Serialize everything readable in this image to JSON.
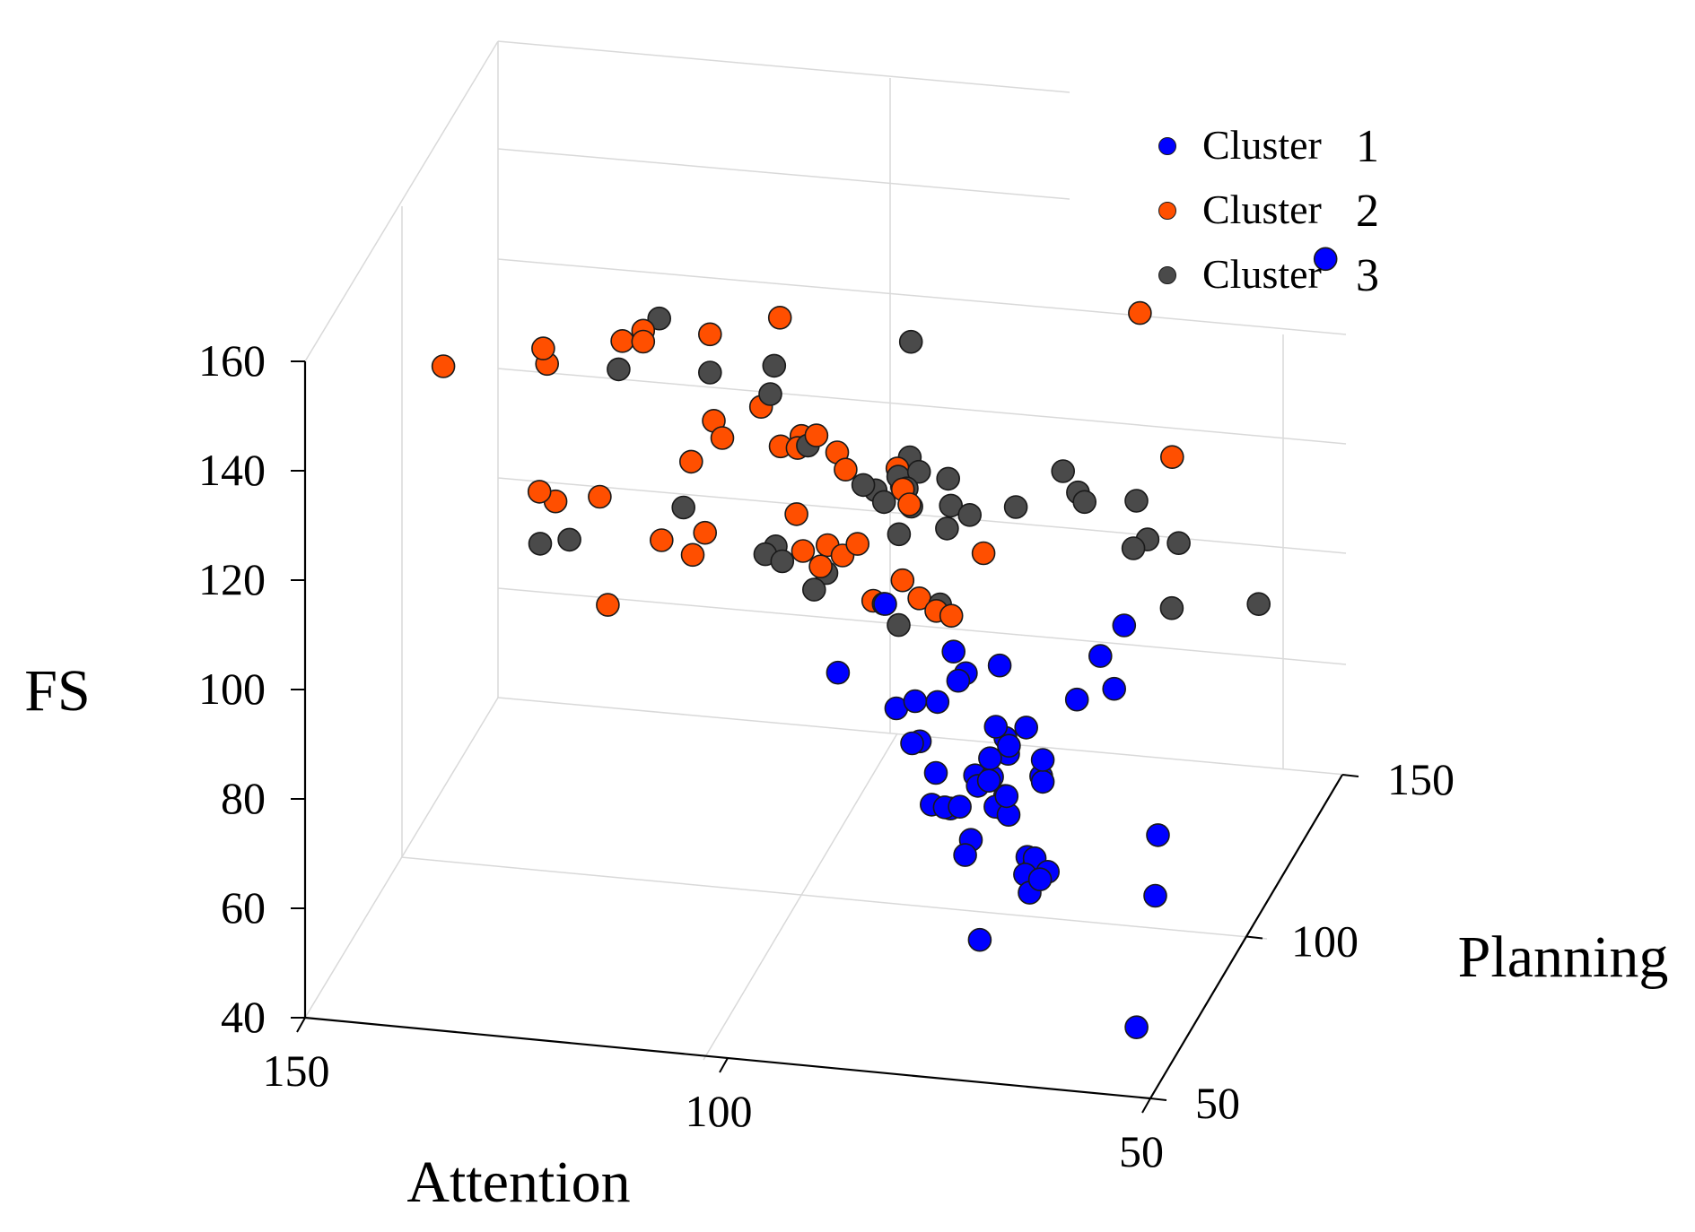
{
  "chart_data": {
    "type": "scatter3d",
    "xlabel": "Attention",
    "ylabel": "Planning",
    "zlabel": "FS",
    "xlim": [
      50,
      150
    ],
    "ylim": [
      50,
      150
    ],
    "zlim": [
      40,
      160
    ],
    "xticks": [
      "150",
      "100",
      "50"
    ],
    "yticks": [
      "50",
      "100",
      "150"
    ],
    "zticks": [
      "160",
      "140",
      "120",
      "100",
      "80",
      "60",
      "40"
    ],
    "grid": true,
    "legend_position": "top-right",
    "series": [
      {
        "name": "Cluster",
        "number": "1",
        "color": "#0000ff",
        "points": [
          [
            52,
            150,
            134
          ],
          [
            56,
            79,
            59
          ],
          [
            53,
            56,
            49
          ],
          [
            55,
            76,
            72
          ],
          [
            94,
            81,
            93
          ],
          [
            88,
            85,
            85
          ],
          [
            86,
            86,
            86
          ],
          [
            85,
            84,
            80
          ],
          [
            85,
            80,
            82
          ],
          [
            84,
            88,
            72
          ],
          [
            80,
            82,
            93
          ],
          [
            82,
            80,
            90
          ],
          [
            74,
            91,
            80
          ],
          [
            76,
            89,
            79
          ],
          [
            75,
            86,
            78
          ],
          [
            76,
            84,
            84
          ],
          [
            78,
            82,
            76
          ],
          [
            72,
            90,
            72
          ],
          [
            70,
            82,
            76
          ],
          [
            68,
            91,
            86
          ],
          [
            78,
            74,
            75
          ],
          [
            64,
            98,
            96
          ],
          [
            65,
            90,
            95
          ],
          [
            62,
            84,
            93
          ],
          [
            74,
            80,
            74
          ],
          [
            74,
            78,
            73
          ],
          [
            72,
            72,
            79
          ],
          [
            74,
            75,
            75
          ],
          [
            72,
            73,
            75
          ],
          [
            80,
            75,
            74
          ],
          [
            76,
            68,
            70
          ],
          [
            70,
            74,
            67
          ],
          [
            69,
            73,
            66
          ],
          [
            80,
            78,
            72
          ],
          [
            76,
            71,
            71
          ],
          [
            68,
            69,
            70
          ],
          [
            66,
            67,
            69
          ],
          [
            67,
            62,
            68
          ],
          [
            66,
            63,
            70
          ],
          [
            68,
            64,
            70
          ],
          [
            80,
            86,
            92
          ],
          [
            76,
            86,
            94
          ],
          [
            82,
            77,
            73
          ],
          [
            75,
            76,
            79
          ],
          [
            77,
            79,
            76
          ],
          [
            76,
            82,
            76
          ],
          [
            76,
            81,
            80
          ],
          [
            74,
            82,
            82
          ],
          [
            70,
            82,
            80
          ],
          [
            81,
            84,
            97
          ],
          [
            72,
            58,
            61
          ],
          [
            90,
            88,
            102
          ]
        ]
      },
      {
        "name": "Cluster",
        "number": "2",
        "color": "#ff4f00",
        "points": [
          [
            140,
            78,
            144
          ],
          [
            130,
            86,
            144
          ],
          [
            130,
            88,
            140
          ],
          [
            122,
            92,
            143
          ],
          [
            120,
            94,
            144
          ],
          [
            120,
            94,
            142
          ],
          [
            113,
            98,
            142
          ],
          [
            107,
            108,
            140
          ],
          [
            130,
            84,
            119
          ],
          [
            129,
            88,
            115
          ],
          [
            109,
            107,
            124
          ],
          [
            113,
            100,
            125
          ],
          [
            112,
            100,
            122
          ],
          [
            124,
            89,
            116
          ],
          [
            115,
            97,
            119
          ],
          [
            104,
            106,
            120
          ],
          [
            104,
            104,
            119
          ],
          [
            102,
            105,
            121
          ],
          [
            100,
            107,
            117
          ],
          [
            99,
            107,
            114
          ],
          [
            94,
            112,
            112
          ],
          [
            93,
            110,
            110
          ],
          [
            116,
            86,
            111
          ],
          [
            113,
            89,
            107
          ],
          [
            112,
            91,
            110
          ],
          [
            103,
            99,
            110
          ],
          [
            92,
            106,
            112
          ],
          [
            91,
            105,
            110
          ],
          [
            102,
            98,
            104
          ],
          [
            96,
            100,
            105
          ],
          [
            98,
            101,
            102
          ],
          [
            121,
            80,
            102
          ],
          [
            90,
            97,
            101
          ],
          [
            88,
            97,
            98
          ],
          [
            93,
            95,
            98
          ],
          [
            86,
            97,
            96
          ],
          [
            84,
            96,
            96
          ],
          [
            82,
            104,
            103
          ],
          [
            64,
            123,
            112
          ],
          [
            71,
            137,
            129
          ],
          [
            106,
            104,
            119
          ],
          [
            100,
            102,
            103
          ],
          [
            99,
            94,
            104
          ]
        ]
      },
      {
        "name": "Cluster",
        "number": "3",
        "color": "#4a4a4a",
        "points": [
          [
            119,
            98,
            144
          ],
          [
            122,
            90,
            139
          ],
          [
            113,
            98,
            135
          ],
          [
            107,
            105,
            133
          ],
          [
            107,
            103,
            129
          ],
          [
            94,
            119,
            131
          ],
          [
            129,
            80,
            112
          ],
          [
            126,
            82,
            112
          ],
          [
            115,
            93,
            113
          ],
          [
            103,
            105,
            119
          ],
          [
            93,
            114,
            113
          ],
          [
            105,
            97,
            105
          ],
          [
            104,
            96,
            103
          ],
          [
            96,
            103,
            114
          ],
          [
            95,
            105,
            112
          ],
          [
            93,
            108,
            113
          ],
          [
            91,
            110,
            113
          ],
          [
            92,
            108,
            111
          ],
          [
            88,
            112,
            111
          ],
          [
            94,
            105,
            110
          ],
          [
            91,
            106,
            109
          ],
          [
            87,
            109,
            108
          ],
          [
            85,
            110,
            106
          ],
          [
            92,
            104,
            105
          ],
          [
            87,
            107,
            105
          ],
          [
            80,
            112,
            107
          ],
          [
            76,
            119,
            110
          ],
          [
            74,
            118,
            107
          ],
          [
            73,
            117,
            106
          ],
          [
            68,
            122,
            104
          ],
          [
            66,
            119,
            99
          ],
          [
            67,
            116,
            99
          ],
          [
            63,
            122,
            97
          ],
          [
            62,
            114,
            90
          ],
          [
            54,
            124,
            86
          ],
          [
            92,
            96,
            97
          ],
          [
            86,
            99,
            96
          ],
          [
            90,
            95,
            94
          ],
          [
            99,
            97,
            101
          ],
          [
            100,
            95,
            99
          ],
          [
            106,
            96,
            104
          ]
        ]
      }
    ]
  }
}
